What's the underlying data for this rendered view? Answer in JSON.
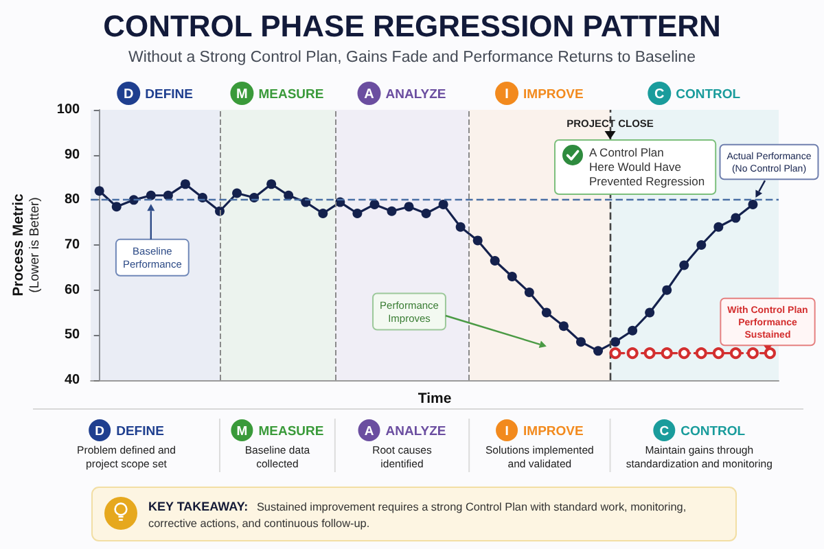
{
  "chart_data": {
    "type": "line",
    "title": "CONTROL PHASE REGRESSION PATTERN",
    "subtitle": "Without a Strong Control Plan, Gains Fade and Performance Returns to Baseline",
    "xlabel": "Time",
    "ylabel": "Process Metric\n(Lower is Better)",
    "categories": [
      null,
      null,
      null,
      null,
      null,
      null,
      null,
      null,
      null,
      null,
      null,
      null,
      null,
      null,
      null,
      null,
      null,
      null,
      null,
      null,
      null,
      null,
      null,
      null,
      null,
      null,
      null,
      null,
      null,
      null,
      null,
      null,
      null,
      null,
      null,
      null,
      null,
      null,
      null,
      null
    ],
    "series": [
      {
        "name": "Actual Performance\n(No Control Plan)",
        "color": "#14214d",
        "line_style": "solid",
        "values": [
          82,
          78.5,
          80,
          81,
          81,
          83.5,
          80.5,
          77.5,
          81.5,
          80.5,
          83.5,
          81,
          79.5,
          77,
          79.5,
          77,
          79,
          77.5,
          78.5,
          77,
          79,
          74,
          71,
          66.5,
          63,
          59.5,
          55,
          52,
          48.5,
          46.5,
          48.5,
          51,
          55,
          60,
          65.5,
          70,
          74,
          76,
          79,
          null
        ]
      },
      {
        "name": "With Control Plan\nPerformance\nSustained",
        "color": "#d32f2f",
        "line_style": "dashed",
        "values": [
          null,
          null,
          null,
          null,
          null,
          null,
          null,
          null,
          null,
          null,
          null,
          null,
          null,
          null,
          null,
          null,
          null,
          null,
          null,
          null,
          null,
          null,
          null,
          null,
          null,
          null,
          null,
          null,
          null,
          null,
          46,
          46,
          46,
          46,
          46,
          46,
          46,
          46,
          46,
          46
        ]
      }
    ],
    "ylim": [
      40,
      100
    ],
    "yticks": [
      40,
      50,
      60,
      70,
      80,
      90,
      100
    ],
    "grid": false,
    "legend": false,
    "marker": "circle",
    "tick_labels": "y",
    "ref_lines": [
      {
        "axis": "y",
        "value": 80,
        "label": "Baseline\nPerformance",
        "color": "#4a6fa5",
        "line_style": "dashed"
      }
    ],
    "annotations": [
      "Performance\nImproves",
      "A Control Plan\nHere Would Have\nPrevented Regression",
      "PROJECT CLOSE",
      "D",
      "M",
      "A",
      "I",
      "C",
      "DEFINE",
      "MEASURE",
      "ANALYZE",
      "IMPROVE",
      "CONTROL",
      "Problem defined and\nproject scope set",
      "Baseline data\ncollected",
      "Root causes\nidentified",
      "Solutions implemented\nand validated",
      "Maintain gains through\nstandardization and monitoring",
      "KEY TAKEAWAY: Sustained improvement requires a strong Control Plan with standard work, monitoring,\ncorrective actions, and continuous follow-up."
    ]
  }
}
